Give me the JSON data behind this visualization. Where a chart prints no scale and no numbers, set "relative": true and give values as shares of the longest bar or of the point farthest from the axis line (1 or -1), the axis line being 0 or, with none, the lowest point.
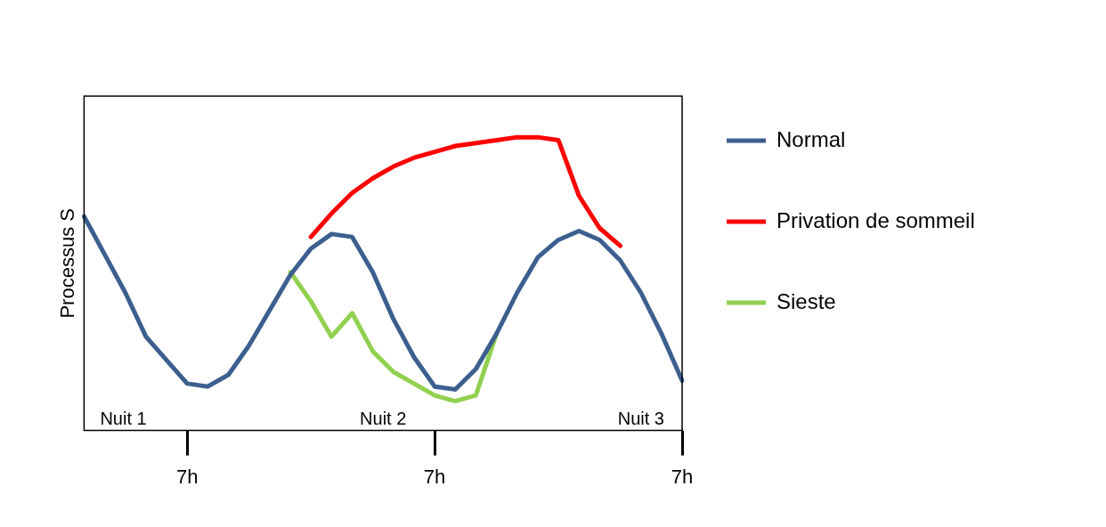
{
  "chart_data": {
    "type": "line",
    "relative": true,
    "ylabel": "Processus S",
    "categories": [
      null,
      null,
      null,
      null,
      null,
      "7h",
      null,
      null,
      null,
      null,
      null,
      null,
      null,
      null,
      null,
      null,
      null,
      "7h",
      null,
      null,
      null,
      null,
      null,
      null,
      null,
      null,
      null,
      null,
      null,
      "7h"
    ],
    "grid": false,
    "legend": "right",
    "marker": "none",
    "line_style": "solid",
    "series": [
      {
        "name": "Normal",
        "color": "#3c5f8f",
        "values": [
          0.73,
          0.6,
          0.47,
          0.32,
          0.24,
          0.16,
          0.15,
          0.19,
          0.29,
          0.41,
          0.53,
          0.62,
          0.67,
          0.66,
          0.54,
          0.38,
          0.25,
          0.15,
          0.14,
          0.21,
          0.33,
          0.47,
          0.59,
          0.65,
          0.68,
          0.65,
          0.58,
          0.47,
          0.33,
          0.17
        ]
      },
      {
        "name": "Privation de sommeil",
        "color": "#ff0000",
        "values": [
          null,
          null,
          null,
          null,
          null,
          null,
          null,
          null,
          null,
          null,
          null,
          0.66,
          0.74,
          0.81,
          0.86,
          0.9,
          0.93,
          0.95,
          0.97,
          0.98,
          0.99,
          1,
          1,
          0.99,
          0.8,
          0.69,
          0.63,
          null,
          null,
          null
        ]
      },
      {
        "name": "Sieste",
        "color": "#92d050",
        "values": [
          null,
          null,
          null,
          null,
          null,
          null,
          null,
          null,
          null,
          null,
          0.54,
          0.44,
          0.32,
          0.4,
          0.27,
          0.2,
          0.16,
          0.12,
          0.1,
          0.12,
          0.33,
          null,
          null,
          null,
          null,
          null,
          null,
          null,
          null,
          null
        ]
      }
    ],
    "annotations": [
      "Nuit 1",
      "Nuit 2",
      "Nuit 3"
    ]
  }
}
